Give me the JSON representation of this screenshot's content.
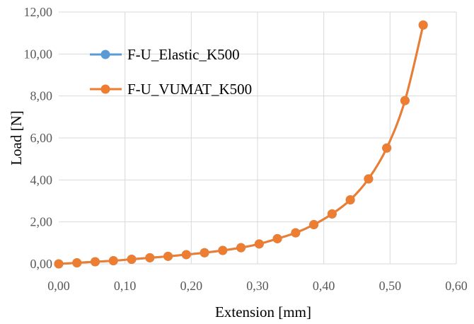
{
  "chart_data": {
    "type": "line",
    "title": "",
    "xlabel": "Extension [mm]",
    "ylabel": "Load [N]",
    "xlim": [
      0,
      0.6
    ],
    "ylim": [
      0,
      12
    ],
    "x_ticks": [
      "0,00",
      "0,10",
      "0,20",
      "0,30",
      "0,40",
      "0,50",
      "0,60"
    ],
    "y_ticks": [
      "0,00",
      "2,00",
      "4,00",
      "6,00",
      "8,00",
      "10,00",
      "12,00"
    ],
    "grid": true,
    "legend_position": "top-left",
    "series": [
      {
        "name": "F-U_Elastic_K500",
        "color": "#5b9bd5",
        "x": [
          0,
          0.0275,
          0.055,
          0.0825,
          0.11,
          0.1375,
          0.165,
          0.1925,
          0.22,
          0.2475,
          0.275,
          0.3025,
          0.33,
          0.3575,
          0.385,
          0.4125,
          0.44,
          0.4675,
          0.495,
          0.5225,
          0.55
        ],
        "y": [
          0,
          0.05,
          0.1,
          0.15,
          0.22,
          0.29,
          0.36,
          0.44,
          0.53,
          0.64,
          0.77,
          0.95,
          1.2,
          1.48,
          1.87,
          2.38,
          3.05,
          4.05,
          5.52,
          7.78,
          11.38
        ]
      },
      {
        "name": "F-U_VUMAT_K500",
        "color": "#ed7d31",
        "x": [
          0,
          0.0275,
          0.055,
          0.0825,
          0.11,
          0.1375,
          0.165,
          0.1925,
          0.22,
          0.2475,
          0.275,
          0.3025,
          0.33,
          0.3575,
          0.385,
          0.4125,
          0.44,
          0.4675,
          0.495,
          0.5225,
          0.55
        ],
        "y": [
          0,
          0.05,
          0.1,
          0.15,
          0.22,
          0.29,
          0.36,
          0.44,
          0.53,
          0.64,
          0.77,
          0.95,
          1.2,
          1.48,
          1.87,
          2.38,
          3.05,
          4.05,
          5.52,
          7.78,
          11.38
        ]
      }
    ]
  }
}
